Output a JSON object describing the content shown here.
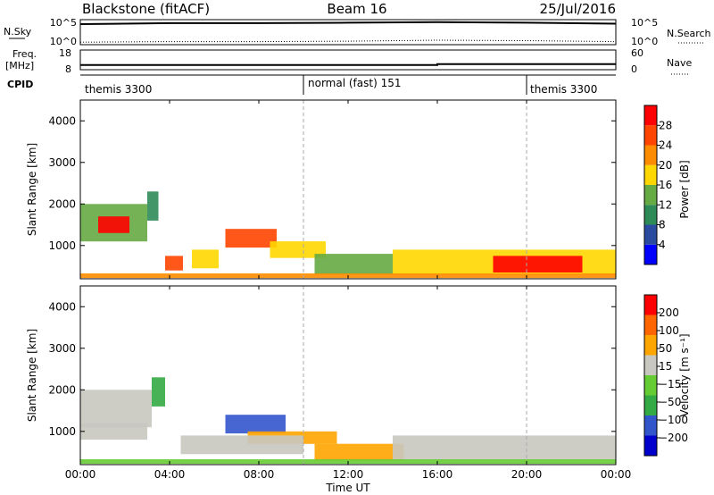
{
  "header": {
    "title": "Blackstone (fitACF)",
    "beam": "Beam 16",
    "date": "25/Jul/2016"
  },
  "nsky_panel": {
    "left_label": "N.Sky",
    "right_label": "N.Search",
    "left_ticks": [
      "10^5",
      "10^0"
    ],
    "right_ticks": [
      "10^5",
      "10^0"
    ]
  },
  "freq_panel": {
    "left_label_1": "Freq.",
    "left_label_2": "[MHz]",
    "right_label": "Nave",
    "left_ticks": [
      "18",
      "8"
    ],
    "right_ticks": [
      "60",
      "0"
    ]
  },
  "cpid_panel": {
    "label": "CPID",
    "segments": [
      "themis 3300",
      "normal (fast) 151",
      "themis 3300"
    ]
  },
  "power_panel": {
    "ylabel": "Slant Range [km]",
    "y_ticks": [
      "4000",
      "3000",
      "2000",
      "1000"
    ],
    "colorbar_label": "Power [dB]",
    "colorbar_ticks": [
      "28",
      "24",
      "20",
      "16",
      "12",
      "8",
      "4"
    ]
  },
  "velocity_panel": {
    "ylabel": "Slant Range [km]",
    "y_ticks": [
      "4000",
      "3000",
      "2000",
      "1000"
    ],
    "colorbar_label": "Velocity [m s⁻¹]",
    "colorbar_ticks": [
      "200",
      "100",
      "50",
      "15",
      "−15",
      "−50",
      "−100",
      "−200"
    ]
  },
  "x_axis": {
    "label": "Time UT",
    "ticks": [
      "00:00",
      "04:00",
      "08:00",
      "12:00",
      "16:00",
      "20:00",
      "00:00"
    ]
  },
  "colors": {
    "power_scale": [
      "#0000ff",
      "#2b4ba0",
      "#2e8b57",
      "#66aa44",
      "#ffd700",
      "#ff8c00",
      "#ff4500",
      "#ff0000"
    ],
    "velocity_scale": [
      "#0000cc",
      "#3355cc",
      "#33aa44",
      "#66cc33",
      "#c8c8c0",
      "#ffa500",
      "#ff6600",
      "#ff0000"
    ]
  },
  "chart_data": [
    {
      "type": "line",
      "title": "N.Sky / N.Search",
      "x": [
        "00:00",
        "04:00",
        "08:00",
        "12:00",
        "16:00",
        "20:00",
        "00:00"
      ],
      "series": [
        {
          "name": "N.Sky",
          "values": [
            4.1,
            4.3,
            4.3,
            4.4,
            4.5,
            4.4,
            4.2
          ]
        },
        {
          "name": "N.Search",
          "values": [
            0.5,
            0.6,
            0.6,
            0.7,
            0.9,
            0.8,
            0.6
          ]
        }
      ]
    },
    {
      "type": "line",
      "title": "Freq. / Nave",
      "x": [
        "00:00",
        "04:00",
        "08:00",
        "12:00",
        "16:00",
        "20:00",
        "00:00"
      ],
      "series": [
        {
          "name": "Freq.",
          "values": [
            10.4,
            10.4,
            10.4,
            10.4,
            10.8,
            10.8,
            10.8
          ]
        }
      ],
      "ylim": [
        8,
        18
      ]
    },
    {
      "type": "heatmap",
      "title": "Power [dB]",
      "xlabel": "Time UT",
      "ylabel": "Slant Range [km]",
      "xlim_hours": [
        0,
        24
      ],
      "ylim": [
        200,
        4500
      ],
      "clim": [
        0,
        30
      ],
      "regions": [
        {
          "t0": 0.0,
          "t1": 3.0,
          "r0": 1100,
          "r1": 2000,
          "value": 14
        },
        {
          "t0": 0.8,
          "t1": 2.2,
          "r0": 1300,
          "r1": 1700,
          "value": 27
        },
        {
          "t0": 3.0,
          "t1": 3.5,
          "r0": 1600,
          "r1": 2300,
          "value": 10
        },
        {
          "t0": 3.8,
          "t1": 4.6,
          "r0": 400,
          "r1": 750,
          "value": 24
        },
        {
          "t0": 5.0,
          "t1": 6.2,
          "r0": 450,
          "r1": 900,
          "value": 18
        },
        {
          "t0": 6.5,
          "t1": 8.8,
          "r0": 950,
          "r1": 1400,
          "value": 25
        },
        {
          "t0": 8.5,
          "t1": 11.0,
          "r0": 700,
          "r1": 1100,
          "value": 16
        },
        {
          "t0": 10.5,
          "t1": 14.0,
          "r0": 300,
          "r1": 800,
          "value": 12
        },
        {
          "t0": 14.0,
          "t1": 24.0,
          "r0": 300,
          "r1": 900,
          "value": 16
        },
        {
          "t0": 18.5,
          "t1": 22.5,
          "r0": 350,
          "r1": 750,
          "value": 28
        },
        {
          "t0": 0.0,
          "t1": 24.0,
          "r0": 220,
          "r1": 330,
          "value": 20
        }
      ]
    },
    {
      "type": "heatmap",
      "title": "Velocity [m s⁻¹]",
      "xlabel": "Time UT",
      "ylabel": "Slant Range [km]",
      "xlim_hours": [
        0,
        24
      ],
      "ylim": [
        200,
        4500
      ],
      "clim": [
        -200,
        200
      ],
      "regions": [
        {
          "t0": 0.0,
          "t1": 3.2,
          "r0": 1100,
          "r1": 2000,
          "value": 0
        },
        {
          "t0": 3.2,
          "t1": 3.8,
          "r0": 1600,
          "r1": 2300,
          "value": -60
        },
        {
          "t0": 0.0,
          "t1": 3.0,
          "r0": 800,
          "r1": 1200,
          "value": 0
        },
        {
          "t0": 6.5,
          "t1": 9.2,
          "r0": 950,
          "r1": 1400,
          "value": -150
        },
        {
          "t0": 7.5,
          "t1": 11.5,
          "r0": 700,
          "r1": 1000,
          "value": 60
        },
        {
          "t0": 10.5,
          "t1": 14.5,
          "r0": 300,
          "r1": 700,
          "value": 60
        },
        {
          "t0": 4.5,
          "t1": 10.0,
          "r0": 450,
          "r1": 900,
          "value": 0
        },
        {
          "t0": 14.0,
          "t1": 24.0,
          "r0": 300,
          "r1": 900,
          "value": 0
        },
        {
          "t0": 0.0,
          "t1": 24.0,
          "r0": 220,
          "r1": 330,
          "value": -40
        }
      ]
    }
  ]
}
